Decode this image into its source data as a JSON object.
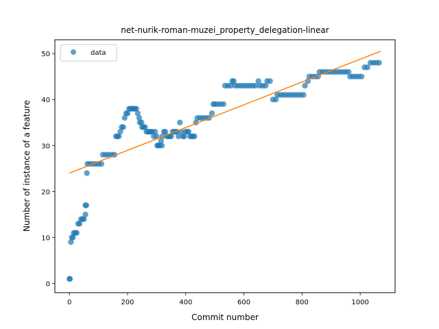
{
  "chart_data": {
    "type": "scatter",
    "title": "net-nurik-roman-muzei_property_delegation-linear",
    "xlabel": "Commit number",
    "ylabel": "Number of instance of a feature",
    "xlim": [
      -50,
      1120
    ],
    "ylim": [
      -2,
      53
    ],
    "xticks": [
      0,
      200,
      400,
      600,
      800,
      1000
    ],
    "yticks": [
      0,
      10,
      20,
      30,
      40,
      50
    ],
    "legend": {
      "position": "top-left",
      "entries": [
        "data"
      ]
    },
    "colors": {
      "scatter": "#1f77b4",
      "fit": "#ff7f0e"
    },
    "series": [
      {
        "name": "data",
        "kind": "scatter",
        "points": [
          [
            0,
            1
          ],
          [
            2,
            1
          ],
          [
            5,
            9
          ],
          [
            8,
            10
          ],
          [
            12,
            10
          ],
          [
            15,
            11
          ],
          [
            20,
            11
          ],
          [
            25,
            11
          ],
          [
            30,
            13
          ],
          [
            35,
            13
          ],
          [
            40,
            14
          ],
          [
            45,
            14
          ],
          [
            50,
            14
          ],
          [
            55,
            15
          ],
          [
            55,
            17
          ],
          [
            58,
            17
          ],
          [
            60,
            24
          ],
          [
            62,
            26
          ],
          [
            70,
            26
          ],
          [
            80,
            26
          ],
          [
            90,
            26
          ],
          [
            100,
            26
          ],
          [
            110,
            26
          ],
          [
            115,
            28
          ],
          [
            125,
            28
          ],
          [
            135,
            28
          ],
          [
            145,
            28
          ],
          [
            155,
            28
          ],
          [
            160,
            32
          ],
          [
            165,
            32
          ],
          [
            170,
            32
          ],
          [
            175,
            33
          ],
          [
            180,
            34
          ],
          [
            185,
            34
          ],
          [
            190,
            36
          ],
          [
            195,
            37
          ],
          [
            200,
            37
          ],
          [
            205,
            38
          ],
          [
            210,
            38
          ],
          [
            215,
            38
          ],
          [
            220,
            38
          ],
          [
            225,
            38
          ],
          [
            230,
            38
          ],
          [
            235,
            37
          ],
          [
            240,
            36
          ],
          [
            242,
            35
          ],
          [
            248,
            35
          ],
          [
            250,
            34
          ],
          [
            255,
            34
          ],
          [
            260,
            34
          ],
          [
            265,
            33
          ],
          [
            270,
            33
          ],
          [
            275,
            33
          ],
          [
            280,
            33
          ],
          [
            285,
            33
          ],
          [
            290,
            32
          ],
          [
            295,
            33
          ],
          [
            300,
            32
          ],
          [
            302,
            30
          ],
          [
            305,
            30
          ],
          [
            310,
            30
          ],
          [
            315,
            31
          ],
          [
            318,
            30
          ],
          [
            320,
            32
          ],
          [
            325,
            33
          ],
          [
            330,
            33
          ],
          [
            335,
            32
          ],
          [
            340,
            32
          ],
          [
            345,
            32
          ],
          [
            350,
            32
          ],
          [
            355,
            33
          ],
          [
            360,
            33
          ],
          [
            365,
            33
          ],
          [
            370,
            33
          ],
          [
            375,
            32
          ],
          [
            380,
            35
          ],
          [
            385,
            33
          ],
          [
            390,
            32
          ],
          [
            395,
            32
          ],
          [
            400,
            33
          ],
          [
            405,
            33
          ],
          [
            410,
            33
          ],
          [
            415,
            32
          ],
          [
            420,
            32
          ],
          [
            425,
            32
          ],
          [
            430,
            32
          ],
          [
            435,
            35
          ],
          [
            440,
            36
          ],
          [
            450,
            36
          ],
          [
            460,
            36
          ],
          [
            470,
            36
          ],
          [
            480,
            36
          ],
          [
            490,
            37
          ],
          [
            495,
            39
          ],
          [
            500,
            39
          ],
          [
            510,
            39
          ],
          [
            520,
            39
          ],
          [
            530,
            39
          ],
          [
            535,
            43
          ],
          [
            545,
            43
          ],
          [
            555,
            43
          ],
          [
            560,
            44
          ],
          [
            565,
            44
          ],
          [
            570,
            43
          ],
          [
            580,
            43
          ],
          [
            590,
            43
          ],
          [
            600,
            43
          ],
          [
            610,
            43
          ],
          [
            620,
            43
          ],
          [
            630,
            43
          ],
          [
            640,
            43
          ],
          [
            650,
            44
          ],
          [
            655,
            43
          ],
          [
            665,
            43
          ],
          [
            675,
            43
          ],
          [
            680,
            44
          ],
          [
            690,
            44
          ],
          [
            700,
            40
          ],
          [
            710,
            40
          ],
          [
            715,
            41
          ],
          [
            725,
            41
          ],
          [
            735,
            41
          ],
          [
            745,
            41
          ],
          [
            755,
            41
          ],
          [
            765,
            41
          ],
          [
            775,
            41
          ],
          [
            785,
            41
          ],
          [
            795,
            41
          ],
          [
            805,
            41
          ],
          [
            810,
            43
          ],
          [
            820,
            44
          ],
          [
            825,
            45
          ],
          [
            835,
            45
          ],
          [
            845,
            45
          ],
          [
            855,
            45
          ],
          [
            860,
            46
          ],
          [
            870,
            46
          ],
          [
            880,
            46
          ],
          [
            890,
            46
          ],
          [
            900,
            46
          ],
          [
            910,
            46
          ],
          [
            920,
            46
          ],
          [
            930,
            46
          ],
          [
            940,
            46
          ],
          [
            950,
            46
          ],
          [
            960,
            46
          ],
          [
            965,
            45
          ],
          [
            975,
            45
          ],
          [
            985,
            45
          ],
          [
            995,
            45
          ],
          [
            1005,
            45
          ],
          [
            1015,
            47
          ],
          [
            1025,
            47
          ],
          [
            1035,
            48
          ],
          [
            1045,
            48
          ],
          [
            1055,
            48
          ],
          [
            1065,
            48
          ]
        ]
      },
      {
        "kind": "line",
        "points": [
          [
            0,
            24
          ],
          [
            1070,
            50.5
          ]
        ]
      }
    ]
  }
}
